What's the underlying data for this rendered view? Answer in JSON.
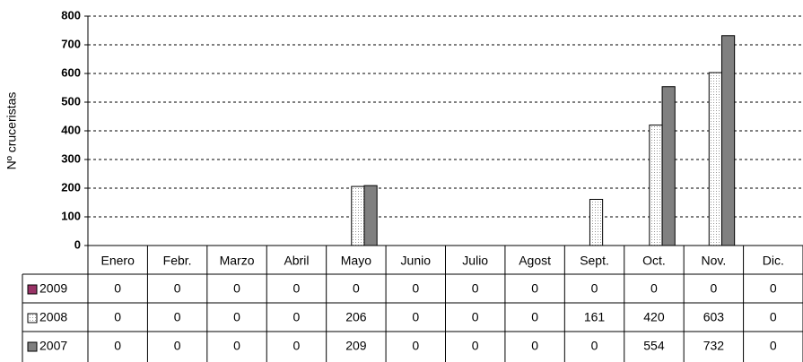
{
  "chart_data": {
    "type": "bar",
    "y_label": "Nº cruceristas",
    "categories": [
      "Enero",
      "Febr.",
      "Marzo",
      "Abril",
      "Mayo",
      "Junio",
      "Julio",
      "Agost",
      "Sept.",
      "Oct.",
      "Nov.",
      "Dic."
    ],
    "series": [
      {
        "name": "2009",
        "color": "#993366",
        "values": [
          0,
          0,
          0,
          0,
          0,
          0,
          0,
          0,
          0,
          0,
          0,
          0
        ]
      },
      {
        "name": "2008",
        "color": "#ffffff",
        "pattern": "dotted",
        "values": [
          0,
          0,
          0,
          0,
          206,
          0,
          0,
          0,
          161,
          420,
          603,
          0
        ]
      },
      {
        "name": "2007",
        "color": "#808080",
        "values": [
          0,
          0,
          0,
          0,
          209,
          0,
          0,
          0,
          0,
          554,
          732,
          0
        ]
      }
    ],
    "ylim": [
      0,
      800
    ],
    "yticks": [
      0,
      100,
      200,
      300,
      400,
      500,
      600,
      700,
      800
    ],
    "grid": true
  }
}
